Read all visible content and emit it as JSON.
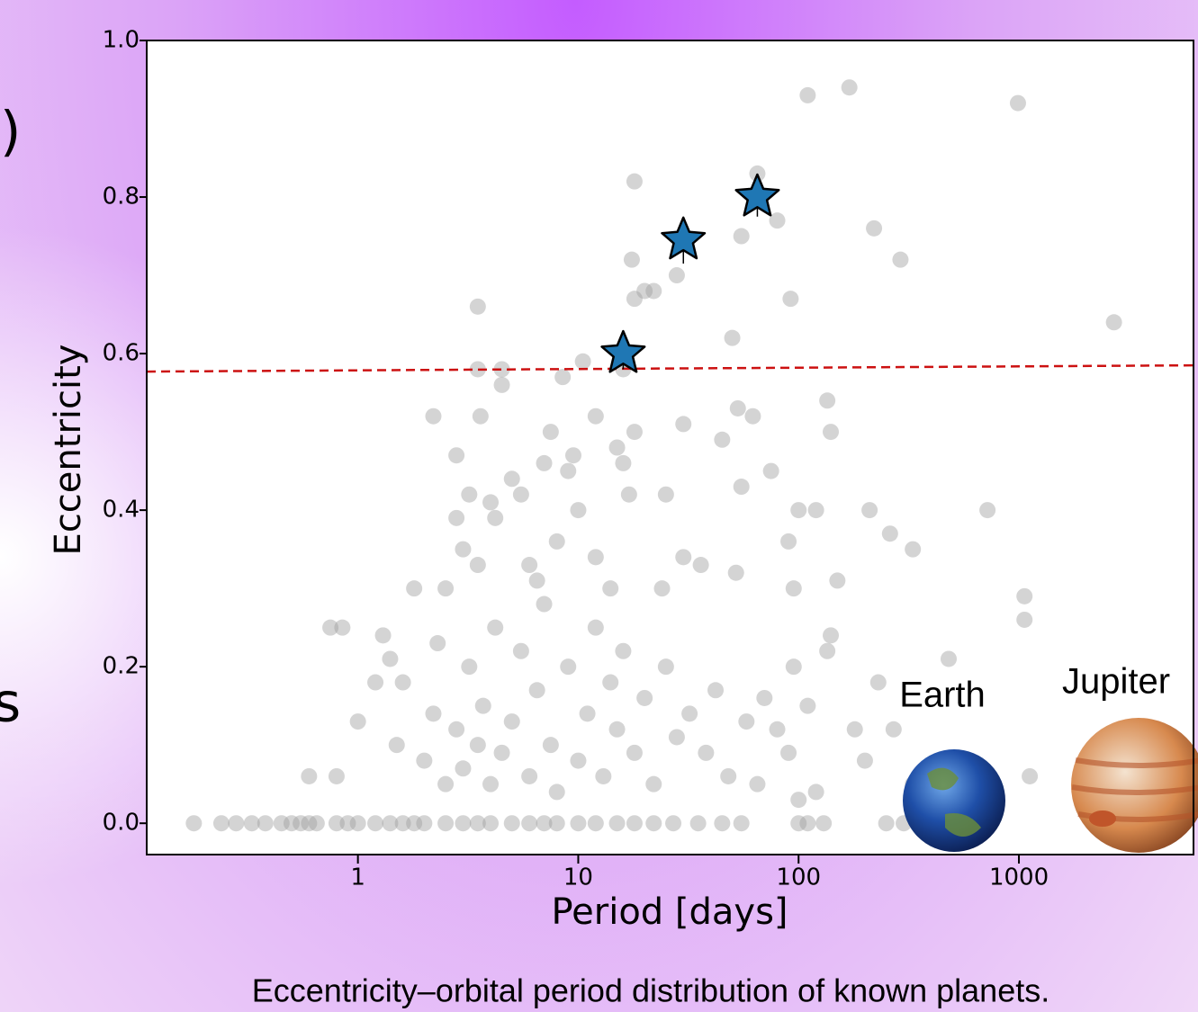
{
  "chart_data": {
    "type": "scatter",
    "x_label": "Period [days]",
    "y_label": "Eccentricity",
    "caption": "Eccentricity–orbital period distribution of known planets.",
    "annotations": [
      "Earth",
      "Jupiter"
    ],
    "background_fragments": [
      ")",
      "s"
    ],
    "xlog": true,
    "xlim": [
      0.11,
      6200
    ],
    "ylim": [
      -0.04,
      1.0
    ],
    "xticks": [
      1,
      10,
      100,
      1000
    ],
    "yticks": [
      {
        "value": 0,
        "label": "0.0"
      },
      0.2,
      0.4,
      0.6,
      0.8,
      {
        "value": 1,
        "label": "1.0"
      }
    ],
    "series": [
      {
        "marker": "circle",
        "color": "#a0a0a0",
        "x": [
          0.18,
          0.24,
          0.28,
          0.33,
          0.38,
          0.45,
          0.5,
          0.55,
          0.6,
          0.65,
          0.8,
          0.9,
          1.0,
          1.2,
          1.4,
          1.6,
          1.8,
          2.0,
          2.5,
          3,
          3.5,
          4,
          5,
          6,
          7,
          8,
          10,
          12,
          15,
          18,
          22,
          27,
          35,
          45,
          55,
          100,
          110,
          130,
          250,
          300,
          0.75,
          0.85,
          0.6,
          0.8,
          1.0,
          1.3,
          1.4,
          1.2,
          1.6,
          1.8,
          2.2,
          2.3,
          2.5,
          2.8,
          2.8,
          3,
          3.2,
          3.5,
          3.5,
          3.6,
          3.5,
          4,
          4.2,
          4.5,
          4.5,
          5,
          5.5,
          6,
          6.5,
          7,
          7.5,
          8,
          8.5,
          9,
          9.5,
          10,
          10.5,
          12,
          12,
          14,
          15,
          16,
          16,
          17,
          17.5,
          18,
          18,
          18,
          20,
          22,
          24,
          25,
          28,
          30,
          30,
          36,
          45,
          50,
          52,
          53,
          55,
          55,
          62,
          65,
          75,
          80,
          90,
          92,
          95,
          100,
          110,
          120,
          135,
          140,
          150,
          170,
          210,
          220,
          260,
          290,
          330,
          480,
          720,
          990,
          1060,
          1060,
          1120,
          2700,
          140,
          135,
          95,
          110,
          80,
          180,
          200,
          230,
          270,
          330,
          1.5,
          2,
          2.2,
          2.5,
          2.8,
          3,
          3.2,
          3.5,
          3.7,
          4,
          4.2,
          4.5,
          5,
          5.5,
          6,
          6.5,
          7,
          7.5,
          8,
          9,
          10,
          11,
          12,
          13,
          14,
          15,
          16,
          18,
          20,
          22,
          25,
          28,
          32,
          38,
          42,
          48,
          58,
          65,
          70,
          90,
          100,
          120
        ],
        "values": [
          0,
          0,
          0,
          0,
          0,
          0,
          0,
          0,
          0,
          0,
          0,
          0,
          0,
          0,
          0,
          0,
          0,
          0,
          0,
          0,
          0,
          0,
          0,
          0,
          0,
          0,
          0,
          0,
          0,
          0,
          0,
          0,
          0,
          0,
          0,
          0,
          0,
          0,
          0,
          0,
          0.25,
          0.25,
          0.06,
          0.06,
          0.13,
          0.24,
          0.21,
          0.18,
          0.18,
          0.3,
          0.52,
          0.23,
          0.3,
          0.47,
          0.39,
          0.35,
          0.42,
          0.66,
          0.58,
          0.52,
          0.33,
          0.41,
          0.39,
          0.58,
          0.56,
          0.44,
          0.42,
          0.33,
          0.31,
          0.46,
          0.5,
          0.36,
          0.57,
          0.45,
          0.47,
          0.4,
          0.59,
          0.52,
          0.34,
          0.3,
          0.48,
          0.58,
          0.46,
          0.42,
          0.72,
          0.82,
          0.67,
          0.5,
          0.68,
          0.68,
          0.3,
          0.42,
          0.7,
          0.51,
          0.34,
          0.33,
          0.49,
          0.62,
          0.32,
          0.53,
          0.43,
          0.75,
          0.52,
          0.83,
          0.45,
          0.77,
          0.36,
          0.67,
          0.3,
          0.4,
          0.93,
          0.4,
          0.54,
          0.5,
          0.31,
          0.94,
          0.4,
          0.76,
          0.37,
          0.72,
          0.35,
          0.21,
          0.4,
          0.92,
          0.29,
          0.26,
          0.06,
          0.64,
          0.24,
          0.22,
          0.2,
          0.15,
          0.12,
          0.12,
          0.08,
          0.18,
          0.12,
          0.05,
          0.1,
          0.08,
          0.14,
          0.05,
          0.12,
          0.07,
          0.2,
          0.1,
          0.15,
          0.05,
          0.25,
          0.09,
          0.13,
          0.22,
          0.06,
          0.17,
          0.28,
          0.1,
          0.04,
          0.2,
          0.08,
          0.14,
          0.25,
          0.06,
          0.18,
          0.12,
          0.22,
          0.09,
          0.16,
          0.05,
          0.2,
          0.11,
          0.14,
          0.09,
          0.17,
          0.06,
          0.13,
          0.05,
          0.16,
          0.09,
          0.03,
          0.04
        ]
      },
      {
        "marker": "line",
        "linestyle": "dashed",
        "color": "#cc1111",
        "x": [
          0.11,
          6200
        ],
        "values": [
          0.577,
          0.585
        ]
      },
      {
        "marker": "star",
        "color": "#1f77b4",
        "x": [
          16,
          30,
          65
        ],
        "values": [
          0.6,
          0.745,
          0.8
        ],
        "yerr": [
          0.02,
          0.03,
          0.025
        ]
      }
    ]
  }
}
